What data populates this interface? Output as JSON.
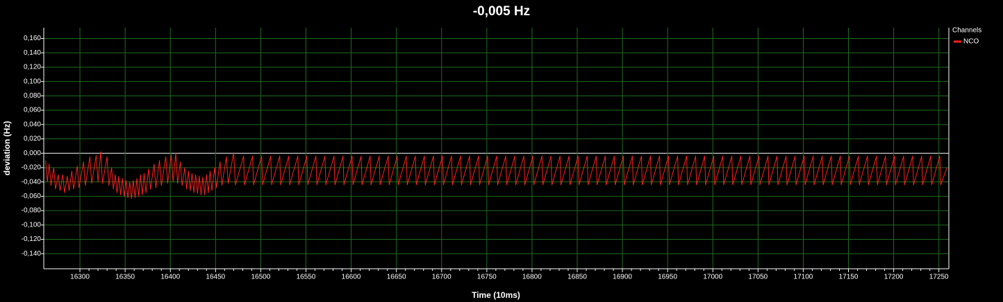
{
  "chart_data": {
    "type": "line",
    "title": "-0,005 Hz",
    "x_label": "Time (10ms)",
    "y_label": "deviation (Hz)",
    "legend_title": "Channels",
    "legend": "right",
    "grid": true,
    "xlim": [
      16260,
      17261
    ],
    "ylim": [
      -0.161,
      0.175
    ],
    "xticks": [
      16300,
      16350,
      16400,
      16450,
      16500,
      16550,
      16600,
      16650,
      16700,
      16750,
      16800,
      16850,
      16900,
      16950,
      17000,
      17050,
      17100,
      17150,
      17200,
      17250
    ],
    "yticks": [
      {
        "value": 0.16,
        "label": "0,160"
      },
      {
        "value": 0.14,
        "label": "0,140"
      },
      {
        "value": 0.12,
        "label": "0,120"
      },
      {
        "value": 0.1,
        "label": "0,100"
      },
      {
        "value": 0.08,
        "label": "0,080"
      },
      {
        "value": 0.06,
        "label": "0,060"
      },
      {
        "value": 0.04,
        "label": "0,040"
      },
      {
        "value": 0.02,
        "label": "0,020"
      },
      {
        "value": 0,
        "label": "0,000"
      },
      {
        "value": -0.02,
        "label": "-0,020"
      },
      {
        "value": -0.04,
        "label": "-0,040"
      },
      {
        "value": -0.06,
        "label": "-0,060"
      },
      {
        "value": -0.08,
        "label": "-0,080"
      },
      {
        "value": -0.1,
        "label": "-0,100"
      },
      {
        "value": -0.12,
        "label": "-0,120"
      },
      {
        "value": -0.14,
        "label": "-0,140"
      }
    ],
    "x": [
      16262,
      16264,
      16266,
      16268,
      16271,
      16273,
      16276,
      16278,
      16281,
      16283,
      16286,
      16288,
      16291,
      16293,
      16297,
      16299,
      16304,
      16306,
      16311,
      16313,
      16318,
      16320,
      16323,
      16325,
      16330,
      16332,
      16335,
      16337,
      16339,
      16341,
      16343,
      16345,
      16347,
      16349,
      16351,
      16353,
      16355,
      16357,
      16359,
      16361,
      16363,
      16365,
      16367,
      16369,
      16371,
      16373,
      16376,
      16378,
      16382,
      16384,
      16388,
      16390,
      16395,
      16397,
      16401,
      16403,
      16406,
      16408,
      16411,
      16413,
      16416,
      16418,
      16420,
      16422,
      16424,
      16426,
      16428,
      16430,
      16432,
      16434,
      16436,
      16438,
      16440,
      16442,
      16444,
      16446,
      16449,
      16451,
      16455,
      16457,
      16462,
      16464,
      16470,
      16472,
      16481,
      16482,
      16491,
      16492,
      16501,
      16502,
      16511,
      16512,
      16521,
      16522,
      16531,
      16532,
      16541,
      16542,
      16551,
      16552,
      16561,
      16562,
      16571,
      16572,
      16581,
      16582,
      16591,
      16592,
      16601,
      16602,
      16611,
      16612,
      16621,
      16622,
      16631,
      16632,
      16641,
      16642,
      16651,
      16652,
      16661,
      16662,
      16671,
      16672,
      16681,
      16682,
      16691,
      16692,
      16701,
      16702,
      16711,
      16712,
      16721,
      16722,
      16731,
      16732,
      16741,
      16742,
      16751,
      16752,
      16761,
      16762,
      16771,
      16772,
      16781,
      16782,
      16791,
      16792,
      16801,
      16802,
      16811,
      16812,
      16821,
      16822,
      16831,
      16832,
      16841,
      16842,
      16851,
      16852,
      16861,
      16862,
      16871,
      16872,
      16881,
      16882,
      16891,
      16892,
      16901,
      16902,
      16911,
      16912,
      16921,
      16922,
      16931,
      16932,
      16941,
      16942,
      16951,
      16952,
      16961,
      16962,
      16971,
      16972,
      16981,
      16982,
      16991,
      16992,
      17001,
      17002,
      17011,
      17012,
      17021,
      17022,
      17031,
      17032,
      17041,
      17042,
      17051,
      17052,
      17061,
      17062,
      17071,
      17072,
      17081,
      17082,
      17091,
      17092,
      17101,
      17102,
      17111,
      17112,
      17121,
      17122,
      17131,
      17132,
      17141,
      17142,
      17151,
      17152,
      17161,
      17162,
      17171,
      17172,
      17181,
      17182,
      17191,
      17192,
      17201,
      17202,
      17211,
      17212,
      17221,
      17222,
      17231,
      17232,
      17241,
      17242,
      17251,
      17252,
      17259
    ],
    "series": [
      {
        "name": "NCO",
        "color": "#ff2020",
        "values": [
          -0.01,
          -0.04,
          -0.015,
          -0.045,
          -0.02,
          -0.05,
          -0.03,
          -0.052,
          -0.03,
          -0.055,
          -0.032,
          -0.052,
          -0.025,
          -0.05,
          -0.018,
          -0.048,
          -0.012,
          -0.045,
          -0.005,
          -0.042,
          -0.003,
          -0.04,
          0.002,
          -0.042,
          -0.005,
          -0.045,
          -0.02,
          -0.05,
          -0.03,
          -0.055,
          -0.032,
          -0.058,
          -0.035,
          -0.06,
          -0.038,
          -0.062,
          -0.04,
          -0.063,
          -0.038,
          -0.062,
          -0.035,
          -0.06,
          -0.03,
          -0.058,
          -0.028,
          -0.055,
          -0.022,
          -0.05,
          -0.015,
          -0.048,
          -0.01,
          -0.045,
          -0.005,
          -0.042,
          -0.002,
          -0.04,
          0,
          -0.042,
          -0.012,
          -0.045,
          -0.02,
          -0.05,
          -0.025,
          -0.052,
          -0.028,
          -0.055,
          -0.03,
          -0.056,
          -0.032,
          -0.058,
          -0.033,
          -0.058,
          -0.03,
          -0.055,
          -0.025,
          -0.052,
          -0.02,
          -0.048,
          -0.012,
          -0.045,
          -0.005,
          -0.042,
          0.001,
          -0.044,
          -0.004,
          -0.044,
          -0.004,
          -0.044,
          -0.004,
          -0.044,
          -0.004,
          -0.044,
          -0.004,
          -0.044,
          -0.004,
          -0.044,
          -0.004,
          -0.044,
          -0.004,
          -0.044,
          -0.004,
          -0.044,
          -0.004,
          -0.044,
          -0.004,
          -0.044,
          -0.004,
          -0.044,
          -0.004,
          -0.044,
          -0.004,
          -0.044,
          -0.004,
          -0.044,
          -0.004,
          -0.044,
          -0.004,
          -0.044,
          -0.004,
          -0.044,
          -0.004,
          -0.044,
          -0.004,
          -0.044,
          -0.004,
          -0.044,
          -0.004,
          -0.044,
          -0.004,
          -0.044,
          -0.004,
          -0.044,
          -0.004,
          -0.044,
          -0.004,
          -0.044,
          -0.004,
          -0.044,
          -0.004,
          -0.044,
          -0.004,
          -0.044,
          -0.004,
          -0.044,
          -0.004,
          -0.044,
          -0.004,
          -0.044,
          -0.004,
          -0.044,
          -0.004,
          -0.044,
          -0.004,
          -0.044,
          -0.004,
          -0.044,
          -0.004,
          -0.044,
          -0.004,
          -0.044,
          -0.004,
          -0.044,
          -0.004,
          -0.044,
          -0.004,
          -0.044,
          -0.004,
          -0.044,
          -0.004,
          -0.044,
          -0.004,
          -0.044,
          -0.004,
          -0.044,
          -0.004,
          -0.044,
          -0.004,
          -0.044,
          -0.004,
          -0.044,
          -0.004,
          -0.044,
          -0.004,
          -0.044,
          -0.004,
          -0.044,
          -0.004,
          -0.044,
          -0.004,
          -0.044,
          -0.004,
          -0.044,
          -0.004,
          -0.044,
          -0.004,
          -0.044,
          -0.004,
          -0.044,
          -0.004,
          -0.044,
          -0.004,
          -0.044,
          -0.004,
          -0.044,
          -0.004,
          -0.044,
          -0.004,
          -0.044,
          -0.004,
          -0.044,
          -0.004,
          -0.044,
          -0.004,
          -0.044,
          -0.004,
          -0.044,
          -0.004,
          -0.044,
          -0.004,
          -0.044,
          -0.004,
          -0.044,
          -0.004,
          -0.044,
          -0.004,
          -0.044,
          -0.004,
          -0.044,
          -0.004,
          -0.044,
          -0.004,
          -0.044,
          -0.004,
          -0.044,
          -0.004,
          -0.044,
          -0.004,
          -0.044,
          -0.004,
          -0.044,
          -0.02
        ]
      }
    ]
  }
}
